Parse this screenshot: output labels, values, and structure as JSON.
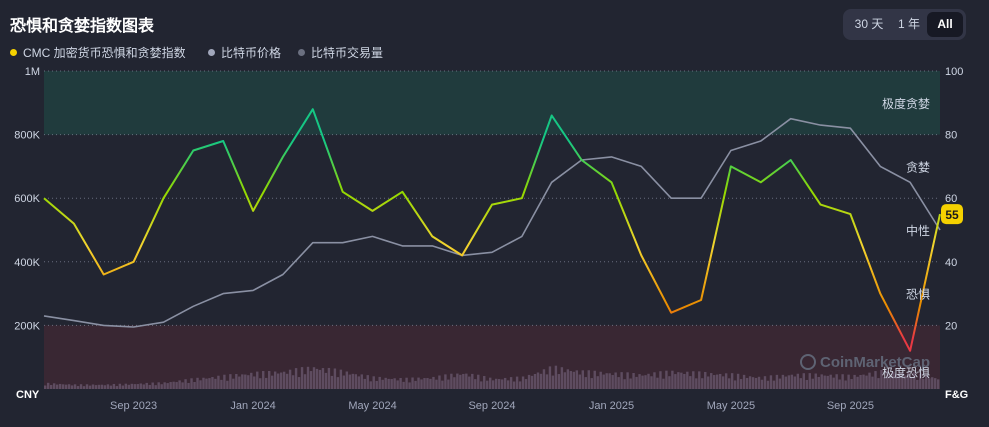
{
  "title": "恐惧和贪婪指数图表",
  "range_buttons": [
    {
      "label": "30 天",
      "active": false
    },
    {
      "label": "1 年",
      "active": false
    },
    {
      "label": "All",
      "active": true
    }
  ],
  "legend": [
    {
      "label": "CMC 加密货币恐惧和贪婪指数",
      "color": "#f5d100"
    },
    {
      "label": "比特币价格",
      "color": "#a1a7bb"
    },
    {
      "label": "比特币交易量",
      "color": "#6b7080"
    }
  ],
  "zones": [
    {
      "label": "极度贪婪",
      "from": 80,
      "to": 100,
      "color": "#16c784"
    },
    {
      "label": "贪婪",
      "from": 60,
      "to": 80
    },
    {
      "label": "中性",
      "from": 40,
      "to": 60
    },
    {
      "label": "恐惧",
      "from": 20,
      "to": 40
    },
    {
      "label": "极度恐惧",
      "from": 0,
      "to": 20,
      "color": "#ea3943"
    }
  ],
  "watermark": "CoinMarketCap",
  "current_value_label": "55",
  "chart_data": {
    "type": "line",
    "left_axis": {
      "unit": "CNY",
      "ticks": [
        "200K",
        "400K",
        "600K",
        "800K",
        "1M"
      ],
      "range": [
        0,
        1000000
      ]
    },
    "right_axis": {
      "unit": "F&G",
      "ticks": [
        "20",
        "40",
        "60",
        "80",
        "100"
      ],
      "range": [
        0,
        100
      ]
    },
    "x_ticks": [
      "Sep 2023",
      "Jan 2024",
      "May 2024",
      "Sep 2024",
      "Jan 2025",
      "May 2025",
      "Sep 2025"
    ],
    "x_range": [
      "2023-06",
      "2025-12"
    ],
    "series": [
      {
        "name": "CMC 加密货币恐惧和贪婪指数",
        "axis": "right",
        "x": [
          "2023-06",
          "2023-07",
          "2023-08",
          "2023-09",
          "2023-10",
          "2023-11",
          "2023-12",
          "2024-01",
          "2024-02",
          "2024-03",
          "2024-04",
          "2024-05",
          "2024-06",
          "2024-07",
          "2024-08",
          "2024-09",
          "2024-10",
          "2024-11",
          "2024-12",
          "2025-01",
          "2025-02",
          "2025-03",
          "2025-04",
          "2025-05",
          "2025-06",
          "2025-07",
          "2025-08",
          "2025-09",
          "2025-10",
          "2025-11",
          "2025-12"
        ],
        "values": [
          60,
          52,
          36,
          40,
          60,
          75,
          78,
          56,
          73,
          88,
          62,
          56,
          62,
          48,
          42,
          58,
          60,
          86,
          72,
          65,
          42,
          24,
          28,
          70,
          65,
          72,
          58,
          55,
          30,
          12,
          55
        ]
      },
      {
        "name": "比特币价格",
        "axis": "left",
        "x": [
          "2023-06",
          "2023-07",
          "2023-08",
          "2023-09",
          "2023-10",
          "2023-11",
          "2023-12",
          "2024-01",
          "2024-02",
          "2024-03",
          "2024-04",
          "2024-05",
          "2024-06",
          "2024-07",
          "2024-08",
          "2024-09",
          "2024-10",
          "2024-11",
          "2024-12",
          "2025-01",
          "2025-02",
          "2025-03",
          "2025-04",
          "2025-05",
          "2025-06",
          "2025-07",
          "2025-08",
          "2025-09",
          "2025-10",
          "2025-11",
          "2025-12"
        ],
        "values": [
          230000,
          215000,
          200000,
          195000,
          210000,
          260000,
          300000,
          310000,
          360000,
          460000,
          460000,
          480000,
          450000,
          450000,
          420000,
          430000,
          480000,
          650000,
          720000,
          730000,
          700000,
          600000,
          600000,
          750000,
          780000,
          850000,
          830000,
          820000,
          700000,
          650000,
          500000
        ]
      },
      {
        "name": "比特币交易量",
        "axis": "left",
        "x": [
          "2023-06",
          "2023-07",
          "2023-08",
          "2023-09",
          "2023-10",
          "2023-11",
          "2023-12",
          "2024-01",
          "2024-02",
          "2024-03",
          "2024-04",
          "2024-05",
          "2024-06",
          "2024-07",
          "2024-08",
          "2024-09",
          "2024-10",
          "2024-11",
          "2024-12",
          "2025-01",
          "2025-02",
          "2025-03",
          "2025-04",
          "2025-05",
          "2025-06",
          "2025-07",
          "2025-08",
          "2025-09",
          "2025-10",
          "2025-11",
          "2025-12"
        ],
        "values": [
          20000,
          15000,
          15000,
          18000,
          22000,
          35000,
          45000,
          55000,
          60000,
          75000,
          60000,
          40000,
          35000,
          40000,
          55000,
          35000,
          40000,
          75000,
          60000,
          55000,
          50000,
          60000,
          55000,
          50000,
          40000,
          50000,
          50000,
          45000,
          60000,
          55000,
          35000
        ]
      }
    ]
  }
}
